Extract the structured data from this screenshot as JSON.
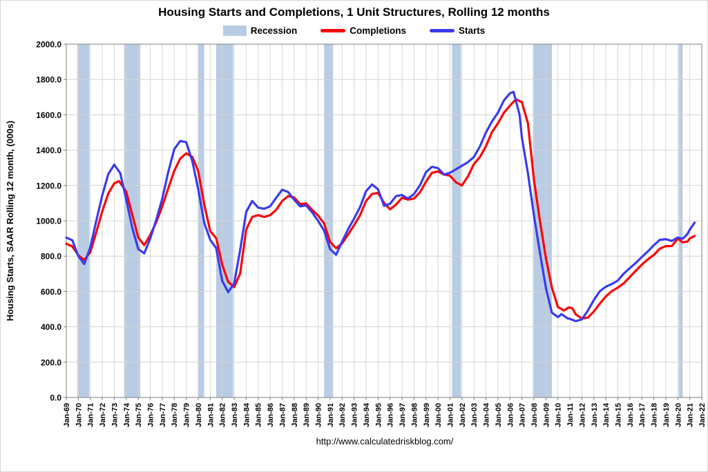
{
  "legend": {
    "recession": "Recession",
    "completions": "Completions",
    "starts": "Starts"
  },
  "footer": "http://www.calculatedriskblog.com/",
  "colors": {
    "recession": "#b8cce4",
    "completions": "#ff0000",
    "starts": "#3a3af0",
    "grid": "#d4d4d4",
    "axis": "#7f7f7f"
  },
  "chart_data": {
    "type": "line",
    "title": "Housing Starts and Completions, 1 Unit Structures, Rolling 12 months",
    "xlabel": "",
    "ylabel": "Housing Starts, SAAR Rolling 12 month, (000s)",
    "x_range": [
      1969,
      2022
    ],
    "y_range": [
      0,
      2000
    ],
    "grid": true,
    "legend_position": "top",
    "y_ticks": [
      "0.0",
      "200.0",
      "400.0",
      "600.0",
      "800.0",
      "1000.0",
      "1200.0",
      "1400.0",
      "1600.0",
      "1800.0",
      "2000.0"
    ],
    "x_ticks": [
      "Jan-69",
      "Jan-70",
      "Jan-71",
      "Jan-72",
      "Jan-73",
      "Jan-74",
      "Jan-75",
      "Jan-76",
      "Jan-77",
      "Jan-78",
      "Jan-79",
      "Jan-80",
      "Jan-81",
      "Jan-82",
      "Jan-83",
      "Jan-84",
      "Jan-85",
      "Jan-86",
      "Jan-87",
      "Jan-88",
      "Jan-89",
      "Jan-90",
      "Jan-91",
      "Jan-92",
      "Jan-93",
      "Jan-94",
      "Jan-95",
      "Jan-96",
      "Jan-97",
      "Jan-98",
      "Jan-99",
      "Jan-00",
      "Jan-01",
      "Jan-02",
      "Jan-03",
      "Jan-04",
      "Jan-05",
      "Jan-06",
      "Jan-07",
      "Jan-08",
      "Jan-09",
      "Jan-10",
      "Jan-11",
      "Jan-12",
      "Jan-13",
      "Jan-14",
      "Jan-15",
      "Jan-16",
      "Jan-17",
      "Jan-18",
      "Jan-19",
      "Jan-20",
      "Jan-21",
      "Jan-22"
    ],
    "recessions": [
      [
        1969.92,
        1970.92
      ],
      [
        1973.83,
        1975.17
      ],
      [
        1980.0,
        1980.5
      ],
      [
        1981.5,
        1982.92
      ],
      [
        1990.5,
        1991.25
      ],
      [
        2001.17,
        2001.92
      ],
      [
        2007.92,
        2009.5
      ],
      [
        2020.08,
        2020.4
      ]
    ],
    "series": [
      {
        "name": "Completions",
        "color_key": "completions",
        "points": [
          [
            1969.0,
            870
          ],
          [
            1969.5,
            855
          ],
          [
            1970.0,
            805
          ],
          [
            1970.5,
            778
          ],
          [
            1971.0,
            822
          ],
          [
            1971.5,
            935
          ],
          [
            1972.0,
            1055
          ],
          [
            1972.5,
            1155
          ],
          [
            1973.0,
            1212
          ],
          [
            1973.4,
            1225
          ],
          [
            1974.0,
            1165
          ],
          [
            1974.5,
            1035
          ],
          [
            1975.0,
            905
          ],
          [
            1975.5,
            862
          ],
          [
            1976.0,
            920
          ],
          [
            1976.5,
            992
          ],
          [
            1977.0,
            1082
          ],
          [
            1977.5,
            1182
          ],
          [
            1978.0,
            1282
          ],
          [
            1978.5,
            1352
          ],
          [
            1979.0,
            1382
          ],
          [
            1979.5,
            1362
          ],
          [
            1980.0,
            1282
          ],
          [
            1980.5,
            1095
          ],
          [
            1981.0,
            942
          ],
          [
            1981.5,
            902
          ],
          [
            1982.0,
            752
          ],
          [
            1982.5,
            655
          ],
          [
            1983.0,
            625
          ],
          [
            1983.5,
            702
          ],
          [
            1984.0,
            950
          ],
          [
            1984.5,
            1022
          ],
          [
            1985.0,
            1032
          ],
          [
            1985.5,
            1022
          ],
          [
            1986.0,
            1032
          ],
          [
            1986.5,
            1062
          ],
          [
            1987.0,
            1112
          ],
          [
            1987.5,
            1140
          ],
          [
            1988.0,
            1132
          ],
          [
            1988.5,
            1095
          ],
          [
            1989.0,
            1098
          ],
          [
            1989.5,
            1062
          ],
          [
            1990.0,
            1030
          ],
          [
            1990.5,
            985
          ],
          [
            1991.0,
            880
          ],
          [
            1991.5,
            845
          ],
          [
            1992.0,
            872
          ],
          [
            1992.5,
            922
          ],
          [
            1993.0,
            975
          ],
          [
            1993.5,
            1032
          ],
          [
            1994.0,
            1112
          ],
          [
            1994.5,
            1152
          ],
          [
            1995.0,
            1158
          ],
          [
            1995.5,
            1102
          ],
          [
            1996.0,
            1065
          ],
          [
            1996.5,
            1092
          ],
          [
            1997.0,
            1130
          ],
          [
            1997.5,
            1120
          ],
          [
            1998.0,
            1126
          ],
          [
            1998.5,
            1162
          ],
          [
            1999.0,
            1222
          ],
          [
            1999.5,
            1272
          ],
          [
            2000.0,
            1280
          ],
          [
            2000.5,
            1262
          ],
          [
            2001.0,
            1255
          ],
          [
            2001.5,
            1218
          ],
          [
            2002.0,
            1200
          ],
          [
            2002.5,
            1252
          ],
          [
            2003.0,
            1322
          ],
          [
            2003.5,
            1362
          ],
          [
            2004.0,
            1422
          ],
          [
            2004.5,
            1502
          ],
          [
            2005.0,
            1552
          ],
          [
            2005.5,
            1612
          ],
          [
            2006.0,
            1652
          ],
          [
            2006.5,
            1688
          ],
          [
            2007.0,
            1672
          ],
          [
            2007.3,
            1600
          ],
          [
            2007.5,
            1552
          ],
          [
            2008.0,
            1232
          ],
          [
            2008.5,
            1000
          ],
          [
            2009.0,
            790
          ],
          [
            2009.5,
            622
          ],
          [
            2010.0,
            512
          ],
          [
            2010.5,
            492
          ],
          [
            2010.9,
            510
          ],
          [
            2011.2,
            505
          ],
          [
            2011.5,
            470
          ],
          [
            2012.0,
            447
          ],
          [
            2012.5,
            452
          ],
          [
            2013.0,
            487
          ],
          [
            2013.5,
            532
          ],
          [
            2014.0,
            572
          ],
          [
            2014.5,
            602
          ],
          [
            2015.0,
            622
          ],
          [
            2015.5,
            647
          ],
          [
            2016.0,
            682
          ],
          [
            2016.5,
            717
          ],
          [
            2017.0,
            752
          ],
          [
            2017.5,
            782
          ],
          [
            2018.0,
            807
          ],
          [
            2018.5,
            842
          ],
          [
            2019.0,
            857
          ],
          [
            2019.5,
            857
          ],
          [
            2020.0,
            900
          ],
          [
            2020.4,
            878
          ],
          [
            2020.8,
            882
          ],
          [
            2021.0,
            900
          ],
          [
            2021.4,
            915
          ]
        ]
      },
      {
        "name": "Starts",
        "color_key": "starts",
        "points": [
          [
            1969.0,
            905
          ],
          [
            1969.5,
            890
          ],
          [
            1970.0,
            800
          ],
          [
            1970.5,
            755
          ],
          [
            1971.0,
            850
          ],
          [
            1971.5,
            1000
          ],
          [
            1972.0,
            1145
          ],
          [
            1972.5,
            1265
          ],
          [
            1973.0,
            1318
          ],
          [
            1973.5,
            1270
          ],
          [
            1974.0,
            1120
          ],
          [
            1974.5,
            960
          ],
          [
            1975.0,
            840
          ],
          [
            1975.5,
            816
          ],
          [
            1976.0,
            900
          ],
          [
            1976.5,
            1005
          ],
          [
            1977.0,
            1125
          ],
          [
            1977.5,
            1275
          ],
          [
            1978.0,
            1405
          ],
          [
            1978.5,
            1452
          ],
          [
            1979.0,
            1445
          ],
          [
            1979.5,
            1340
          ],
          [
            1980.0,
            1180
          ],
          [
            1980.5,
            990
          ],
          [
            1981.0,
            893
          ],
          [
            1981.5,
            845
          ],
          [
            1982.0,
            660
          ],
          [
            1982.5,
            596
          ],
          [
            1983.0,
            645
          ],
          [
            1983.5,
            835
          ],
          [
            1984.0,
            1050
          ],
          [
            1984.5,
            1112
          ],
          [
            1985.0,
            1075
          ],
          [
            1985.5,
            1068
          ],
          [
            1986.0,
            1082
          ],
          [
            1986.5,
            1130
          ],
          [
            1987.0,
            1176
          ],
          [
            1987.5,
            1163
          ],
          [
            1988.0,
            1120
          ],
          [
            1988.5,
            1082
          ],
          [
            1989.0,
            1087
          ],
          [
            1989.5,
            1048
          ],
          [
            1990.0,
            1000
          ],
          [
            1990.5,
            945
          ],
          [
            1991.0,
            840
          ],
          [
            1991.5,
            808
          ],
          [
            1992.0,
            882
          ],
          [
            1992.5,
            952
          ],
          [
            1993.0,
            1012
          ],
          [
            1993.5,
            1078
          ],
          [
            1994.0,
            1168
          ],
          [
            1994.5,
            1206
          ],
          [
            1995.0,
            1178
          ],
          [
            1995.5,
            1085
          ],
          [
            1996.0,
            1097
          ],
          [
            1996.5,
            1140
          ],
          [
            1997.0,
            1146
          ],
          [
            1997.5,
            1126
          ],
          [
            1998.0,
            1152
          ],
          [
            1998.5,
            1202
          ],
          [
            1999.0,
            1276
          ],
          [
            1999.5,
            1306
          ],
          [
            2000.0,
            1298
          ],
          [
            2000.5,
            1262
          ],
          [
            2001.0,
            1272
          ],
          [
            2001.5,
            1292
          ],
          [
            2002.0,
            1312
          ],
          [
            2002.5,
            1332
          ],
          [
            2003.0,
            1362
          ],
          [
            2003.5,
            1422
          ],
          [
            2004.0,
            1500
          ],
          [
            2004.5,
            1562
          ],
          [
            2005.0,
            1612
          ],
          [
            2005.5,
            1682
          ],
          [
            2006.0,
            1722
          ],
          [
            2006.3,
            1730
          ],
          [
            2006.8,
            1600
          ],
          [
            2007.0,
            1470
          ],
          [
            2007.5,
            1270
          ],
          [
            2008.0,
            1030
          ],
          [
            2008.5,
            820
          ],
          [
            2009.0,
            620
          ],
          [
            2009.5,
            480
          ],
          [
            2010.0,
            455
          ],
          [
            2010.3,
            472
          ],
          [
            2010.8,
            448
          ],
          [
            2011.0,
            445
          ],
          [
            2011.5,
            432
          ],
          [
            2012.0,
            442
          ],
          [
            2012.5,
            492
          ],
          [
            2013.0,
            552
          ],
          [
            2013.5,
            602
          ],
          [
            2014.0,
            627
          ],
          [
            2014.5,
            642
          ],
          [
            2015.0,
            662
          ],
          [
            2015.5,
            702
          ],
          [
            2016.0,
            732
          ],
          [
            2016.5,
            762
          ],
          [
            2017.0,
            795
          ],
          [
            2017.5,
            827
          ],
          [
            2018.0,
            862
          ],
          [
            2018.5,
            892
          ],
          [
            2019.0,
            896
          ],
          [
            2019.5,
            886
          ],
          [
            2020.0,
            906
          ],
          [
            2020.4,
            898
          ],
          [
            2020.8,
            925
          ],
          [
            2021.0,
            950
          ],
          [
            2021.4,
            990
          ]
        ]
      }
    ]
  }
}
